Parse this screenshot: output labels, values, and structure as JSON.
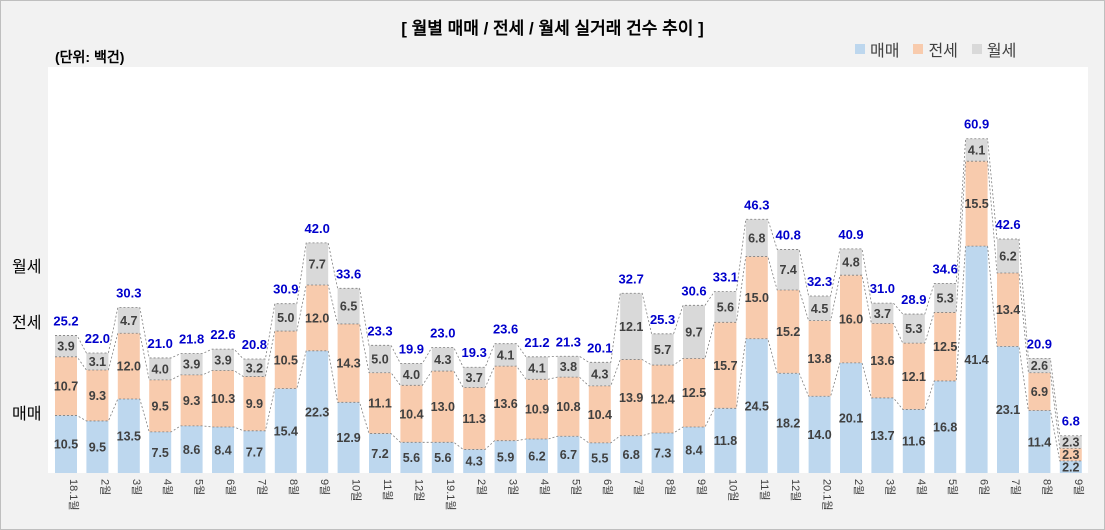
{
  "chart_data": {
    "type": "bar",
    "stacked": true,
    "title": "[ 월별 매매 / 전세 / 월세 실거래 건수 추이 ]",
    "unit_label": "(단위: 백건)",
    "categories": [
      "18.1월",
      "2월",
      "3월",
      "4월",
      "5월",
      "6월",
      "7월",
      "8월",
      "9월",
      "10월",
      "11월",
      "12월",
      "19.1월",
      "2월",
      "3월",
      "4월",
      "5월",
      "6월",
      "7월",
      "8월",
      "9월",
      "10월",
      "11월",
      "12월",
      "20.1월",
      "2월",
      "3월",
      "4월",
      "5월",
      "6월",
      "7월",
      "8월",
      "9월"
    ],
    "series": [
      {
        "name": "매매",
        "color": "#bdd7ee",
        "values": [
          10.5,
          9.5,
          13.5,
          7.5,
          8.6,
          8.4,
          7.7,
          15.4,
          22.3,
          12.9,
          7.2,
          5.6,
          5.6,
          4.3,
          5.9,
          6.2,
          6.7,
          5.5,
          6.8,
          7.3,
          8.4,
          11.8,
          24.5,
          18.2,
          14.0,
          20.1,
          13.7,
          11.6,
          16.8,
          41.4,
          23.1,
          11.4,
          2.2
        ]
      },
      {
        "name": "전세",
        "color": "#f8cbad",
        "values": [
          10.7,
          9.3,
          12.0,
          9.5,
          9.3,
          10.3,
          9.9,
          10.5,
          12.0,
          14.3,
          11.1,
          10.4,
          13.0,
          11.3,
          13.6,
          10.9,
          10.8,
          10.4,
          13.9,
          12.4,
          12.5,
          15.7,
          15.0,
          15.2,
          13.8,
          16.0,
          13.6,
          12.1,
          12.5,
          15.5,
          13.4,
          6.9,
          2.3
        ]
      },
      {
        "name": "월세",
        "color": "#d9d9d9",
        "values": [
          3.9,
          3.1,
          4.7,
          4.0,
          3.9,
          3.9,
          3.2,
          5.0,
          7.7,
          6.5,
          5.0,
          4.0,
          4.3,
          3.7,
          4.1,
          4.1,
          3.8,
          4.3,
          12.1,
          5.7,
          9.7,
          5.6,
          6.8,
          7.4,
          4.5,
          4.8,
          3.7,
          5.3,
          5.3,
          4.1,
          6.2,
          2.6,
          2.3
        ]
      }
    ],
    "totals": [
      25.2,
      22.0,
      30.3,
      21.0,
      21.8,
      22.6,
      20.8,
      30.9,
      42.0,
      33.6,
      23.3,
      19.9,
      23.0,
      19.3,
      23.6,
      21.2,
      21.3,
      20.1,
      32.7,
      25.3,
      30.6,
      33.1,
      46.3,
      40.8,
      32.3,
      40.9,
      31.0,
      28.9,
      34.6,
      60.9,
      42.6,
      20.9,
      6.8
    ],
    "side_labels": [
      "월세",
      "전세",
      "매매"
    ],
    "total_label_color": "#0000cc",
    "ylim": [
      0,
      66
    ]
  }
}
